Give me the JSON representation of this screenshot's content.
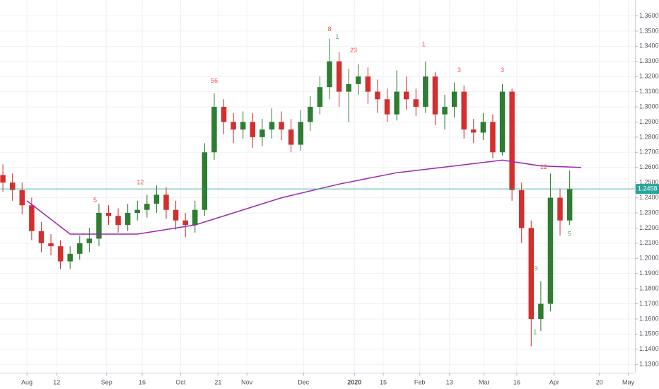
{
  "chart_data": {
    "type": "candlestick",
    "xlim": [
      -0.3,
      65.8
    ],
    "xticks": [
      {
        "value": 2.5,
        "label": "Aug"
      },
      {
        "value": 5.6,
        "label": "12"
      },
      {
        "value": 10.8,
        "label": "Sep"
      },
      {
        "value": 14.5,
        "label": "16"
      },
      {
        "value": 18.5,
        "label": "Oct"
      },
      {
        "value": 22.4,
        "label": "21"
      },
      {
        "value": 25.4,
        "label": "Nov"
      },
      {
        "value": 31.3,
        "label": "Dec"
      },
      {
        "value": 36.6,
        "label": "2020"
      },
      {
        "value": 39.6,
        "label": "15"
      },
      {
        "value": 43.4,
        "label": "Feb"
      },
      {
        "value": 46.5,
        "label": "13"
      },
      {
        "value": 50.1,
        "label": "Mar"
      },
      {
        "value": 53.5,
        "label": "16"
      },
      {
        "value": 57.4,
        "label": "Apr"
      },
      {
        "value": 62.1,
        "label": "20"
      },
      {
        "value": 65.1,
        "label": "May"
      }
    ],
    "ylim": [
      1.1245,
      1.3705
    ],
    "yticks": [
      {
        "value": 1.13,
        "label": "1.1300"
      },
      {
        "value": 1.14,
        "label": "1.1400"
      },
      {
        "value": 1.15,
        "label": "1.1500"
      },
      {
        "value": 1.16,
        "label": "1.1600"
      },
      {
        "value": 1.17,
        "label": "1.1700"
      },
      {
        "value": 1.18,
        "label": "1.1800"
      },
      {
        "value": 1.19,
        "label": "1.1900"
      },
      {
        "value": 1.2,
        "label": "1.2000"
      },
      {
        "value": 1.21,
        "label": "1.2100"
      },
      {
        "value": 1.22,
        "label": "1.2200"
      },
      {
        "value": 1.23,
        "label": "1.2300"
      },
      {
        "value": 1.24,
        "label": "1.2400"
      },
      {
        "value": 1.25,
        "label": "1.2500"
      },
      {
        "value": 1.26,
        "label": "1.2600"
      },
      {
        "value": 1.27,
        "label": "1.2700"
      },
      {
        "value": 1.28,
        "label": "1.2800"
      },
      {
        "value": 1.29,
        "label": "1.2900"
      },
      {
        "value": 1.3,
        "label": "1.3000"
      },
      {
        "value": 1.31,
        "label": "1.3100"
      },
      {
        "value": 1.32,
        "label": "1.3200"
      },
      {
        "value": 1.33,
        "label": "1.3300"
      },
      {
        "value": 1.34,
        "label": "1.3400"
      },
      {
        "value": 1.35,
        "label": "1.3500"
      },
      {
        "value": 1.36,
        "label": "1.3600"
      }
    ],
    "grid": true,
    "up_color": "#2e7d32",
    "down_color": "#d32f2f",
    "open": [
      1.255,
      1.25,
      1.245,
      1.235,
      1.218,
      1.21,
      1.208,
      1.198,
      1.203,
      1.21,
      1.213,
      1.23,
      1.228,
      1.222,
      1.23,
      1.232,
      1.236,
      1.242,
      1.232,
      1.225,
      1.222,
      1.232,
      1.27,
      1.3,
      1.29,
      1.285,
      1.29,
      1.28,
      1.285,
      1.29,
      1.285,
      1.275,
      1.29,
      1.3,
      1.313,
      1.33,
      1.31,
      1.315,
      1.32,
      1.31,
      1.305,
      1.295,
      1.31,
      1.305,
      1.3,
      1.32,
      1.295,
      1.3,
      1.31,
      1.285,
      1.283,
      1.29,
      1.27,
      1.31,
      1.245,
      1.22,
      1.16,
      1.17,
      1.24,
      1.225
    ],
    "high": [
      1.262,
      1.256,
      1.25,
      1.24,
      1.224,
      1.216,
      1.212,
      1.208,
      1.215,
      1.22,
      1.236,
      1.235,
      1.233,
      1.236,
      1.238,
      1.242,
      1.248,
      1.247,
      1.238,
      1.23,
      1.238,
      1.276,
      1.309,
      1.305,
      1.296,
      1.297,
      1.296,
      1.292,
      1.299,
      1.297,
      1.292,
      1.298,
      1.307,
      1.32,
      1.345,
      1.336,
      1.325,
      1.328,
      1.326,
      1.318,
      1.312,
      1.324,
      1.32,
      1.312,
      1.33,
      1.323,
      1.308,
      1.316,
      1.314,
      1.292,
      1.296,
      1.295,
      1.315,
      1.312,
      1.25,
      1.225,
      1.185,
      1.256,
      1.246,
      1.258
    ],
    "low": [
      1.244,
      1.238,
      1.229,
      1.212,
      1.204,
      1.202,
      1.193,
      1.193,
      1.199,
      1.204,
      1.208,
      1.222,
      1.217,
      1.218,
      1.225,
      1.227,
      1.23,
      1.226,
      1.219,
      1.214,
      1.217,
      1.228,
      1.265,
      1.282,
      1.276,
      1.279,
      1.273,
      1.274,
      1.279,
      1.278,
      1.27,
      1.271,
      1.284,
      1.295,
      1.305,
      1.3,
      1.29,
      1.308,
      1.302,
      1.296,
      1.29,
      1.291,
      1.298,
      1.294,
      1.296,
      1.288,
      1.285,
      1.293,
      1.279,
      1.276,
      1.278,
      1.266,
      1.268,
      1.238,
      1.21,
      1.142,
      1.152,
      1.165,
      1.215,
      1.222
    ],
    "close": [
      1.25,
      1.245,
      1.235,
      1.218,
      1.21,
      1.208,
      1.198,
      1.203,
      1.21,
      1.213,
      1.23,
      1.228,
      1.222,
      1.23,
      1.232,
      1.236,
      1.242,
      1.232,
      1.225,
      1.222,
      1.232,
      1.27,
      1.3,
      1.29,
      1.285,
      1.29,
      1.28,
      1.285,
      1.29,
      1.285,
      1.275,
      1.29,
      1.3,
      1.313,
      1.33,
      1.31,
      1.315,
      1.32,
      1.31,
      1.305,
      1.295,
      1.31,
      1.305,
      1.3,
      1.32,
      1.295,
      1.3,
      1.31,
      1.285,
      1.283,
      1.29,
      1.27,
      1.31,
      1.245,
      1.22,
      1.16,
      1.17,
      1.24,
      1.225,
      1.2458
    ],
    "moving_average": {
      "color": "#9c27b0",
      "x": [
        2.5,
        7,
        14,
        20,
        29,
        35,
        41,
        47,
        52,
        56,
        60.2
      ],
      "values": [
        1.238,
        1.216,
        1.216,
        1.222,
        1.24,
        1.249,
        1.2565,
        1.261,
        1.2648,
        1.261,
        1.26
      ]
    },
    "last_price": {
      "value": 1.2458,
      "label": "1.2458",
      "color": "#26a69a"
    },
    "annotations": [
      {
        "x": 34,
        "y": 1.351,
        "text": "8",
        "color": "#ef5350"
      },
      {
        "x": 34.8,
        "y": 1.346,
        "text": "1",
        "color": "#4caf50"
      },
      {
        "x": 22,
        "y": 1.317,
        "text": "56",
        "color": "#ef5350"
      },
      {
        "x": 36.5,
        "y": 1.337,
        "text": "23",
        "color": "#ef5350"
      },
      {
        "x": 43.8,
        "y": 1.341,
        "text": "1",
        "color": "#ef5350"
      },
      {
        "x": 47.5,
        "y": 1.324,
        "text": "3",
        "color": "#ef5350"
      },
      {
        "x": 52,
        "y": 1.324,
        "text": "3",
        "color": "#ef5350"
      },
      {
        "x": 9.6,
        "y": 1.238,
        "text": "5",
        "color": "#ef5350"
      },
      {
        "x": 14.3,
        "y": 1.25,
        "text": "12",
        "color": "#ef5350"
      },
      {
        "x": 56.3,
        "y": 1.26,
        "text": "12",
        "color": "#ef5350"
      },
      {
        "x": 59,
        "y": 1.216,
        "text": "5",
        "color": "#4caf50"
      },
      {
        "x": 55.5,
        "y": 1.193,
        "text": "9",
        "color": "#4caf50"
      },
      {
        "x": 55.4,
        "y": 1.151,
        "text": "1",
        "color": "#4caf50"
      }
    ]
  }
}
